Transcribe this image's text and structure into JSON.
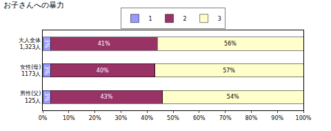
{
  "chart_data": {
    "type": "bar",
    "title": "お子さんへの暴力",
    "orientation": "horizontal",
    "stacked": true,
    "data_labels": true,
    "grid": false,
    "legend": "top",
    "categories": [
      "大人全体\n1,323人",
      "女性(母)\n1173人",
      "男性(父)\n125人"
    ],
    "series": [
      {
        "name": "1",
        "color": "#9999ff",
        "values": [
          3,
          3,
          3
        ],
        "value_labels": [
          "3%",
          "3%",
          "3%"
        ]
      },
      {
        "name": "2",
        "color": "#993366",
        "values": [
          41,
          40,
          43
        ],
        "value_labels": [
          "41%",
          "40%",
          "43%"
        ]
      },
      {
        "name": "3",
        "color": "#ffffcc",
        "values": [
          56,
          57,
          54
        ],
        "value_labels": [
          "56%",
          "57%",
          "54%"
        ]
      }
    ],
    "xlim": [
      0,
      100
    ],
    "xticks": [
      {
        "value": 0,
        "label": "0%"
      },
      {
        "value": 10,
        "label": "10%"
      },
      {
        "value": 20,
        "label": "20%"
      },
      {
        "value": 30,
        "label": "30%"
      },
      {
        "value": 40,
        "label": "40%"
      },
      {
        "value": 50,
        "label": "50%"
      },
      {
        "value": 60,
        "label": "60%"
      },
      {
        "value": 70,
        "label": "70%"
      },
      {
        "value": 80,
        "label": "80%"
      },
      {
        "value": 90,
        "label": "90%"
      },
      {
        "value": 100,
        "label": "100%"
      }
    ]
  }
}
